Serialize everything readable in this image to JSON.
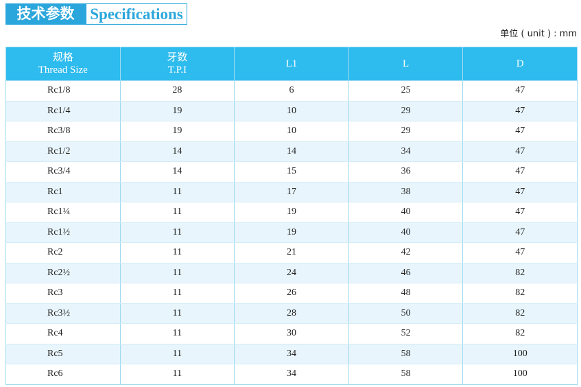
{
  "header": {
    "title_cn": "技术参数",
    "title_en": "Specifications"
  },
  "unit": "单位 ( unit ) : mm",
  "table": {
    "columns": [
      [
        "规格",
        "Thread Size"
      ],
      [
        "牙数",
        "T.P.I"
      ],
      [
        "L1"
      ],
      [
        "L"
      ],
      [
        "D"
      ]
    ],
    "rows": [
      [
        "Rc1/8",
        28,
        6,
        25,
        47
      ],
      [
        "Rc1/4",
        19,
        10,
        29,
        47
      ],
      [
        "Rc3/8",
        19,
        10,
        29,
        47
      ],
      [
        "Rc1/2",
        14,
        14,
        34,
        47
      ],
      [
        "Rc3/4",
        14,
        15,
        36,
        47
      ],
      [
        "Rc1",
        11,
        17,
        38,
        47
      ],
      [
        "Rc1¼",
        11,
        19,
        40,
        47
      ],
      [
        "Rc1½",
        11,
        19,
        40,
        47
      ],
      [
        "Rc2",
        11,
        21,
        42,
        47
      ],
      [
        "Rc2½",
        11,
        24,
        46,
        82
      ],
      [
        "Rc3",
        11,
        26,
        48,
        82
      ],
      [
        "Rc3½",
        11,
        28,
        50,
        82
      ],
      [
        "Rc4",
        11,
        30,
        52,
        82
      ],
      [
        "Rc5",
        11,
        34,
        58,
        100
      ],
      [
        "Rc6",
        11,
        34,
        58,
        100
      ]
    ]
  }
}
